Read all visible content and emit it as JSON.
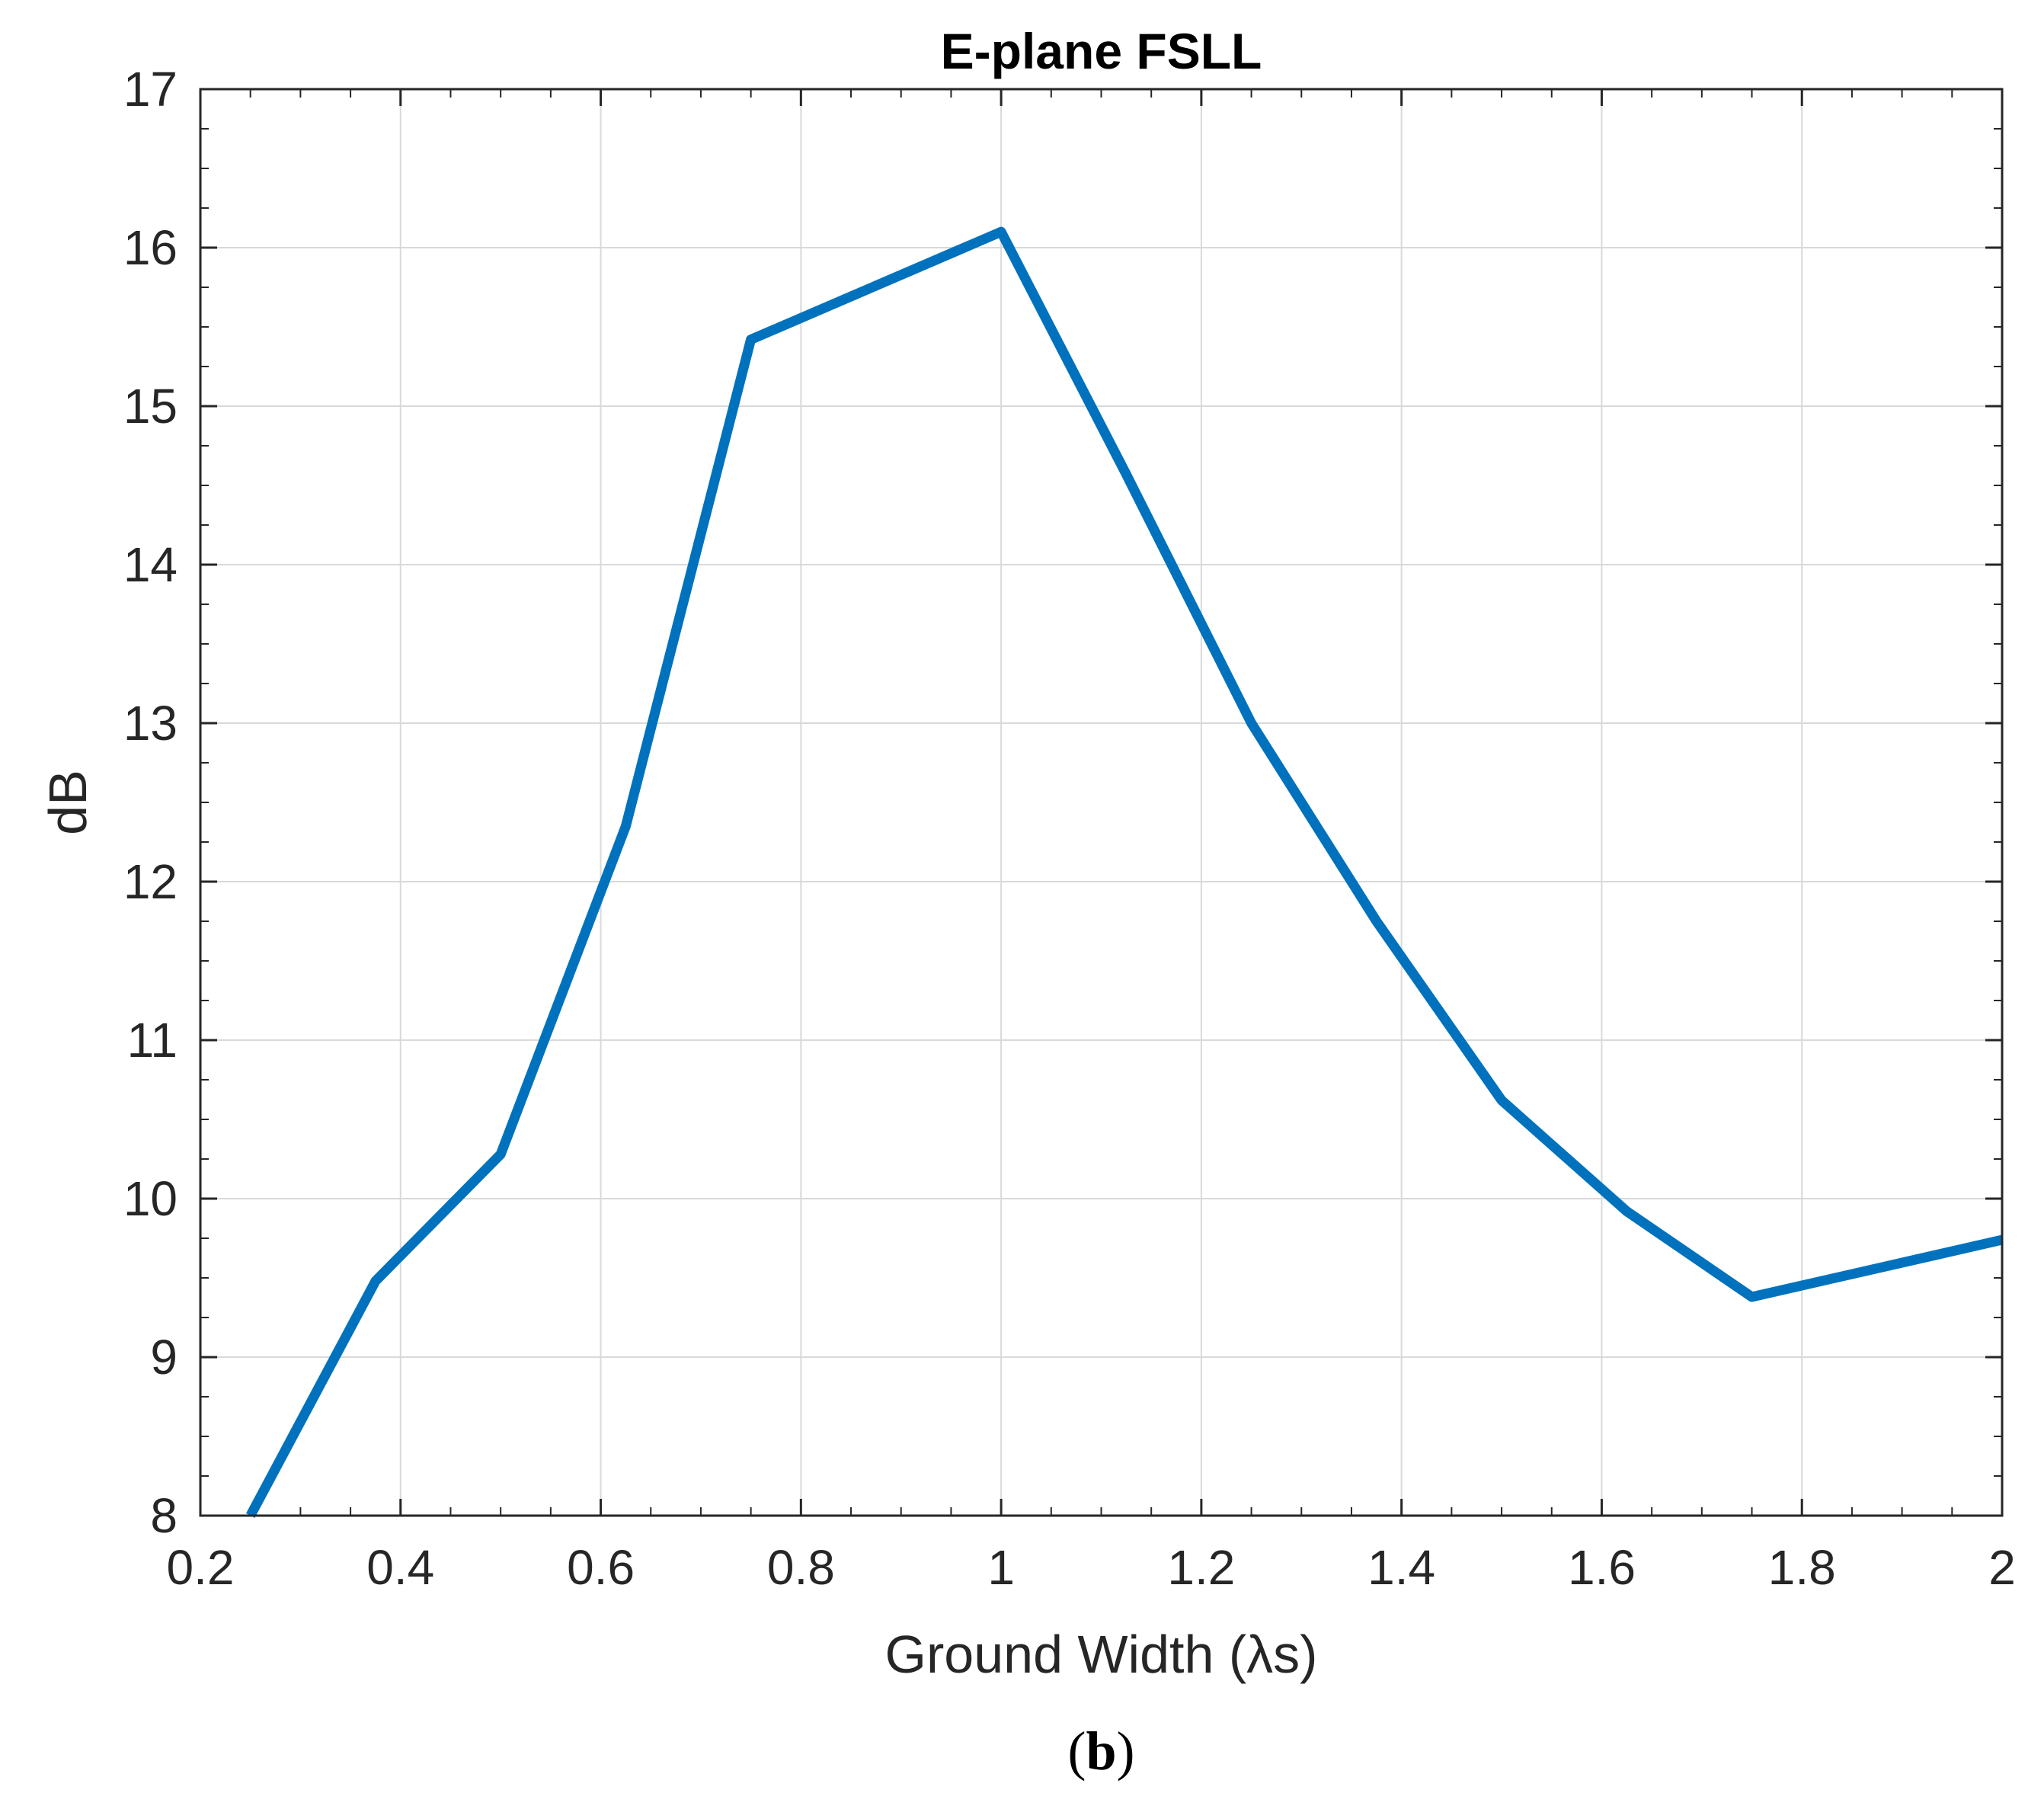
{
  "chart_data": {
    "type": "line",
    "title": "E-plane FSLL",
    "xlabel": "Ground Width (λs)",
    "ylabel": "dB",
    "xlim": [
      0.2,
      2
    ],
    "ylim": [
      8,
      17
    ],
    "grid": true,
    "xticks": [
      0.2,
      0.4,
      0.6,
      0.8,
      1,
      1.2,
      1.4,
      1.6,
      1.8,
      2
    ],
    "xtick_labels": [
      "0.2",
      "0.4",
      "0.6",
      "0.8",
      "1",
      "1.2",
      "1.4",
      "1.6",
      "1.8",
      "2"
    ],
    "yticks": [
      8,
      9,
      10,
      11,
      12,
      13,
      14,
      15,
      16,
      17
    ],
    "ytick_labels": [
      "8",
      "9",
      "10",
      "11",
      "12",
      "13",
      "14",
      "15",
      "16",
      "17"
    ],
    "series": [
      {
        "name": "E-plane FSLL",
        "color": "#0072BD",
        "x": [
          0.25,
          0.375,
          0.5,
          0.625,
          0.75,
          1.0,
          1.125,
          1.25,
          1.375,
          1.5,
          1.625,
          1.75,
          2.0
        ],
        "y": [
          8.0,
          9.48,
          10.28,
          12.35,
          15.42,
          16.1,
          14.57,
          13.0,
          11.75,
          10.62,
          9.92,
          9.38,
          9.74
        ]
      }
    ]
  },
  "caption": {
    "open": "(",
    "letter": "b",
    "close": ")"
  }
}
